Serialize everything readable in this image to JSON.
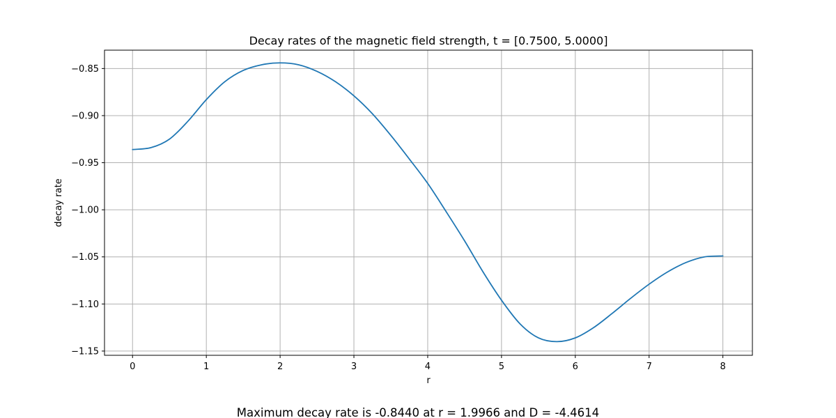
{
  "chart_data": {
    "type": "line",
    "title": "Decay rates of the magnetic field strength, t = [0.7500, 5.0000]",
    "xlabel": "r",
    "ylabel": "decay rate",
    "xlim": [
      -0.38,
      8.4
    ],
    "ylim": [
      -1.1545,
      -0.8305
    ],
    "xticks": [
      0,
      1,
      2,
      3,
      4,
      5,
      6,
      7,
      8
    ],
    "yticks": [
      -0.85,
      -0.9,
      -0.95,
      -1.0,
      -1.05,
      -1.1,
      -1.15
    ],
    "ytick_labels": [
      "−0.85",
      "−0.90",
      "−0.95",
      "−1.00",
      "−1.05",
      "−1.10",
      "−1.15"
    ],
    "grid": true,
    "series": [
      {
        "color": "#1f77b4",
        "x": [
          0,
          0.25,
          0.5,
          0.75,
          1.0,
          1.25,
          1.5,
          1.75,
          1.9966,
          2.25,
          2.5,
          2.75,
          3.0,
          3.25,
          3.5,
          3.75,
          4.0,
          4.25,
          4.5,
          4.75,
          5.0,
          5.25,
          5.5,
          5.75,
          6.0,
          6.25,
          6.5,
          6.75,
          7.0,
          7.25,
          7.5,
          7.75,
          8.0
        ],
        "y": [
          -0.936,
          -0.934,
          -0.925,
          -0.906,
          -0.883,
          -0.864,
          -0.852,
          -0.846,
          -0.844,
          -0.846,
          -0.853,
          -0.864,
          -0.879,
          -0.898,
          -0.921,
          -0.946,
          -0.972,
          -1.002,
          -1.033,
          -1.066,
          -1.096,
          -1.121,
          -1.136,
          -1.14,
          -1.136,
          -1.125,
          -1.11,
          -1.094,
          -1.079,
          -1.066,
          -1.056,
          -1.05,
          -1.049
        ]
      }
    ]
  },
  "caption": "Maximum decay rate is -0.8440 at r = 1.9966 and D = -4.4614"
}
